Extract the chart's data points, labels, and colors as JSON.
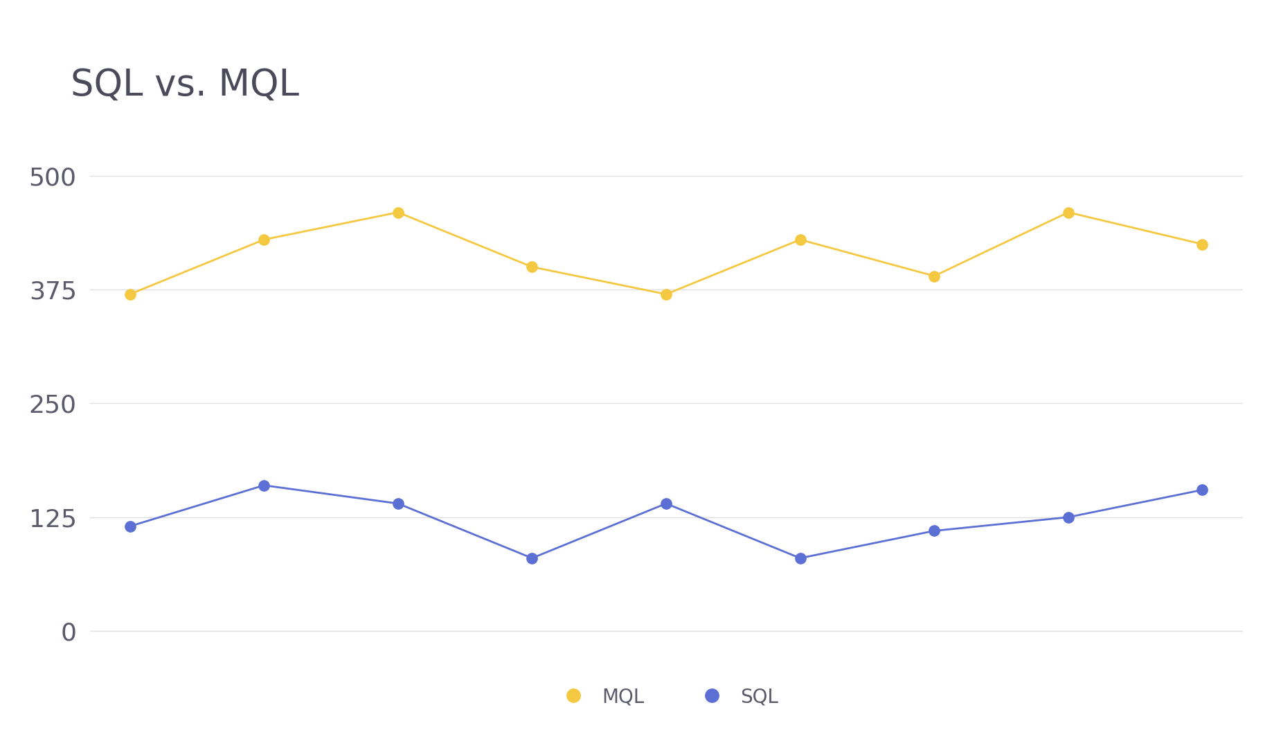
{
  "title": "SQL vs. MQL",
  "title_fontsize": 38,
  "title_color": "#4a4a5a",
  "background_color": "#ffffff",
  "mql_values": [
    370,
    430,
    460,
    400,
    370,
    430,
    390,
    460,
    425
  ],
  "sql_values": [
    115,
    160,
    140,
    80,
    140,
    80,
    110,
    125,
    155
  ],
  "mql_color": "#F5C842",
  "sql_color": "#5B6FD4",
  "x_values": [
    0,
    1,
    2,
    3,
    4,
    5,
    6,
    7,
    8
  ],
  "yticks": [
    0,
    125,
    250,
    375,
    500
  ],
  "ylim": [
    -30,
    570
  ],
  "xlim": [
    -0.3,
    8.3
  ],
  "line_width": 2.0,
  "marker_size": 11,
  "legend_labels": [
    "MQL",
    "SQL"
  ],
  "legend_fontsize": 20,
  "tick_fontsize": 26,
  "tick_color": "#5a5a6a",
  "grid_color": "#e0e0e0"
}
